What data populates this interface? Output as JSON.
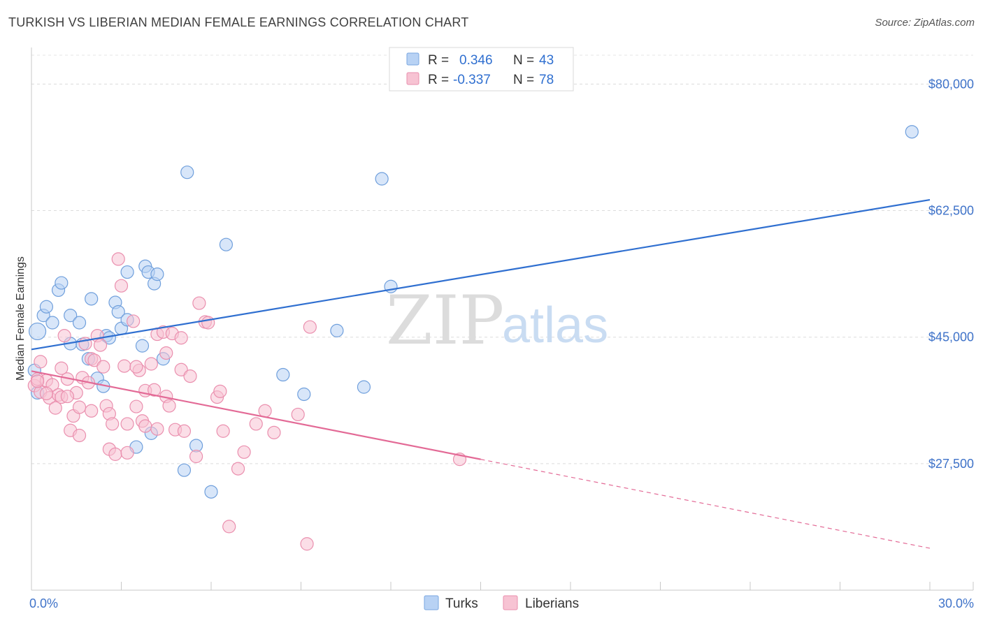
{
  "title": "TURKISH VS LIBERIAN MEDIAN FEMALE EARNINGS CORRELATION CHART",
  "source": "Source: ZipAtlas.com",
  "watermark": {
    "zip": "ZIP",
    "atlas": "atlas"
  },
  "legend_top": {
    "r_label": "R =",
    "n_label": "N =",
    "entries": [
      {
        "r": "0.346",
        "n": "43",
        "color": "#b8d2f4",
        "stroke": "#7aa7e0"
      },
      {
        "r": "-0.337",
        "n": "78",
        "color": "#f7c3d3",
        "stroke": "#ea8fae"
      }
    ]
  },
  "chart_data": {
    "type": "scatter",
    "title": "TURKISH VS LIBERIAN MEDIAN FEMALE EARNINGS CORRELATION CHART",
    "xlabel": "",
    "ylabel": "Median Female Earnings",
    "xlim": [
      0,
      30
    ],
    "ylim": [
      10000,
      84000
    ],
    "x_tick_labels": [
      "0.0%",
      "30.0%"
    ],
    "y_ticks": [
      27500,
      45000,
      62500,
      80000
    ],
    "y_tick_labels": [
      "$27,500",
      "$45,000",
      "$62,500",
      "$80,000"
    ],
    "grid": true,
    "legend_position": "bottom",
    "series": [
      {
        "name": "Turks",
        "color": "#b8d2f4",
        "stroke": "#6f9fdc",
        "line_color": "#2f6fd0",
        "trend": {
          "x0": 0,
          "y0": 43300,
          "x1": 30,
          "y1": 64000
        },
        "points": [
          [
            0.2,
            45800
          ],
          [
            0.4,
            48000
          ],
          [
            0.5,
            49200
          ],
          [
            0.7,
            47000
          ],
          [
            0.9,
            51500
          ],
          [
            1.0,
            52500
          ],
          [
            1.3,
            44100
          ],
          [
            1.3,
            48000
          ],
          [
            1.6,
            47000
          ],
          [
            1.7,
            44000
          ],
          [
            1.9,
            42000
          ],
          [
            2.0,
            50300
          ],
          [
            2.2,
            39300
          ],
          [
            2.4,
            38200
          ],
          [
            2.5,
            45200
          ],
          [
            2.6,
            44900
          ],
          [
            2.8,
            49800
          ],
          [
            2.9,
            48500
          ],
          [
            3.0,
            46200
          ],
          [
            3.2,
            54000
          ],
          [
            3.2,
            47400
          ],
          [
            3.5,
            29800
          ],
          [
            3.7,
            43800
          ],
          [
            3.8,
            54800
          ],
          [
            3.9,
            54000
          ],
          [
            4.0,
            31700
          ],
          [
            4.1,
            52400
          ],
          [
            4.2,
            53700
          ],
          [
            4.4,
            42000
          ],
          [
            5.1,
            26600
          ],
          [
            5.2,
            67800
          ],
          [
            5.5,
            30000
          ],
          [
            6.0,
            23600
          ],
          [
            6.5,
            57800
          ],
          [
            8.4,
            39800
          ],
          [
            9.1,
            37100
          ],
          [
            10.2,
            45900
          ],
          [
            11.1,
            38100
          ],
          [
            11.7,
            66900
          ],
          [
            12.0,
            52000
          ],
          [
            29.4,
            73400
          ],
          [
            0.1,
            40400
          ],
          [
            0.2,
            37300
          ]
        ]
      },
      {
        "name": "Liberians",
        "color": "#f7c3d3",
        "stroke": "#ea8fae",
        "line_color": "#e36a96",
        "trend": {
          "x0": 0,
          "y0": 40300,
          "x1": 15,
          "y1": 28100
        },
        "trend_dashed": {
          "x0": 15,
          "y0": 28100,
          "x1": 30,
          "y1": 15800
        },
        "points": [
          [
            0.1,
            38300
          ],
          [
            0.2,
            39200
          ],
          [
            0.3,
            37400
          ],
          [
            0.3,
            41600
          ],
          [
            0.5,
            39000
          ],
          [
            0.6,
            36600
          ],
          [
            0.7,
            38400
          ],
          [
            0.8,
            35200
          ],
          [
            0.9,
            37000
          ],
          [
            1.0,
            40700
          ],
          [
            1.0,
            36700
          ],
          [
            1.1,
            45200
          ],
          [
            1.2,
            39200
          ],
          [
            1.3,
            32100
          ],
          [
            1.4,
            34100
          ],
          [
            1.5,
            37300
          ],
          [
            1.6,
            35300
          ],
          [
            1.7,
            39400
          ],
          [
            1.8,
            44100
          ],
          [
            1.9,
            38700
          ],
          [
            2.0,
            42000
          ],
          [
            2.1,
            41800
          ],
          [
            2.2,
            45200
          ],
          [
            2.3,
            43900
          ],
          [
            2.4,
            40900
          ],
          [
            2.5,
            35500
          ],
          [
            2.6,
            34400
          ],
          [
            2.6,
            29500
          ],
          [
            2.7,
            33000
          ],
          [
            2.8,
            28800
          ],
          [
            2.9,
            55800
          ],
          [
            3.0,
            52100
          ],
          [
            3.1,
            41000
          ],
          [
            3.2,
            33000
          ],
          [
            3.2,
            29000
          ],
          [
            3.4,
            47200
          ],
          [
            3.5,
            35400
          ],
          [
            3.6,
            40400
          ],
          [
            3.7,
            33400
          ],
          [
            3.8,
            37600
          ],
          [
            3.8,
            32700
          ],
          [
            4.0,
            41300
          ],
          [
            4.1,
            37700
          ],
          [
            4.2,
            45400
          ],
          [
            4.4,
            45700
          ],
          [
            4.5,
            42800
          ],
          [
            4.5,
            36800
          ],
          [
            4.6,
            35500
          ],
          [
            4.7,
            45500
          ],
          [
            4.8,
            32200
          ],
          [
            5.0,
            40500
          ],
          [
            5.0,
            44900
          ],
          [
            5.1,
            32000
          ],
          [
            5.3,
            39600
          ],
          [
            5.5,
            28500
          ],
          [
            5.6,
            49700
          ],
          [
            5.8,
            47100
          ],
          [
            5.9,
            47000
          ],
          [
            6.2,
            36700
          ],
          [
            6.3,
            37500
          ],
          [
            6.4,
            32000
          ],
          [
            6.6,
            18800
          ],
          [
            6.9,
            26800
          ],
          [
            7.1,
            29100
          ],
          [
            7.5,
            33000
          ],
          [
            7.8,
            34800
          ],
          [
            8.1,
            31800
          ],
          [
            8.9,
            34300
          ],
          [
            9.2,
            16400
          ],
          [
            9.3,
            46400
          ],
          [
            0.2,
            38900
          ],
          [
            0.5,
            37200
          ],
          [
            1.6,
            31400
          ],
          [
            2.0,
            34800
          ],
          [
            3.5,
            40900
          ],
          [
            4.2,
            32300
          ],
          [
            14.3,
            28100
          ],
          [
            1.2,
            36800
          ]
        ]
      }
    ]
  }
}
